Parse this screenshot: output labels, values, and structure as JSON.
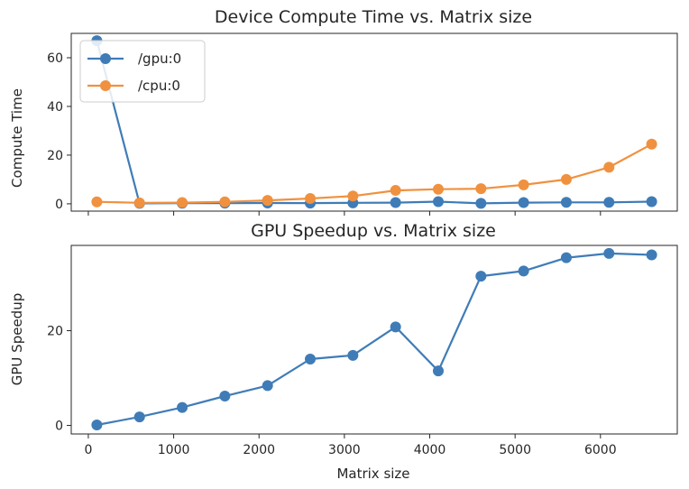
{
  "chart_data": [
    {
      "type": "line",
      "title": "Device Compute Time vs. Matrix size",
      "xlabel": "",
      "ylabel": "Compute Time",
      "x": [
        100,
        600,
        1100,
        1600,
        2100,
        2600,
        3100,
        3600,
        4100,
        4600,
        5100,
        5600,
        6100,
        6600
      ],
      "xlim": [
        -200,
        6900
      ],
      "ylim": [
        -3,
        70
      ],
      "yticks": [
        0,
        20,
        40,
        60
      ],
      "legend_position": "upper-left",
      "series": [
        {
          "name": "/gpu:0",
          "color": "#3f7cb7",
          "values": [
            67,
            0.2,
            0.25,
            0.3,
            0.35,
            0.3,
            0.4,
            0.5,
            0.9,
            0.2,
            0.5,
            0.6,
            0.6,
            0.9
          ]
        },
        {
          "name": "/cpu:0",
          "color": "#f0913f",
          "values": [
            0.8,
            0.4,
            0.5,
            0.8,
            1.4,
            2.2,
            3.2,
            5.5,
            6.0,
            6.2,
            7.8,
            10,
            15,
            24.5
          ]
        }
      ]
    },
    {
      "type": "line",
      "title": "GPU Speedup vs. Matrix size",
      "xlabel": "Matrix size",
      "ylabel": "GPU Speedup",
      "x": [
        100,
        600,
        1100,
        1600,
        2100,
        2600,
        3100,
        3600,
        4100,
        4600,
        5100,
        5600,
        6100,
        6600
      ],
      "xlim": [
        -200,
        6900
      ],
      "ylim": [
        -1.8,
        38
      ],
      "xticks": [
        0,
        1000,
        2000,
        3000,
        4000,
        5000,
        6000
      ],
      "yticks": [
        0,
        20
      ],
      "series": [
        {
          "name": "speedup",
          "color": "#3f7cb7",
          "values": [
            0.1,
            1.8,
            3.8,
            6.2,
            8.4,
            14.0,
            14.8,
            20.8,
            11.5,
            31.5,
            32.6,
            35.4,
            36.3,
            36.0
          ]
        }
      ]
    }
  ]
}
